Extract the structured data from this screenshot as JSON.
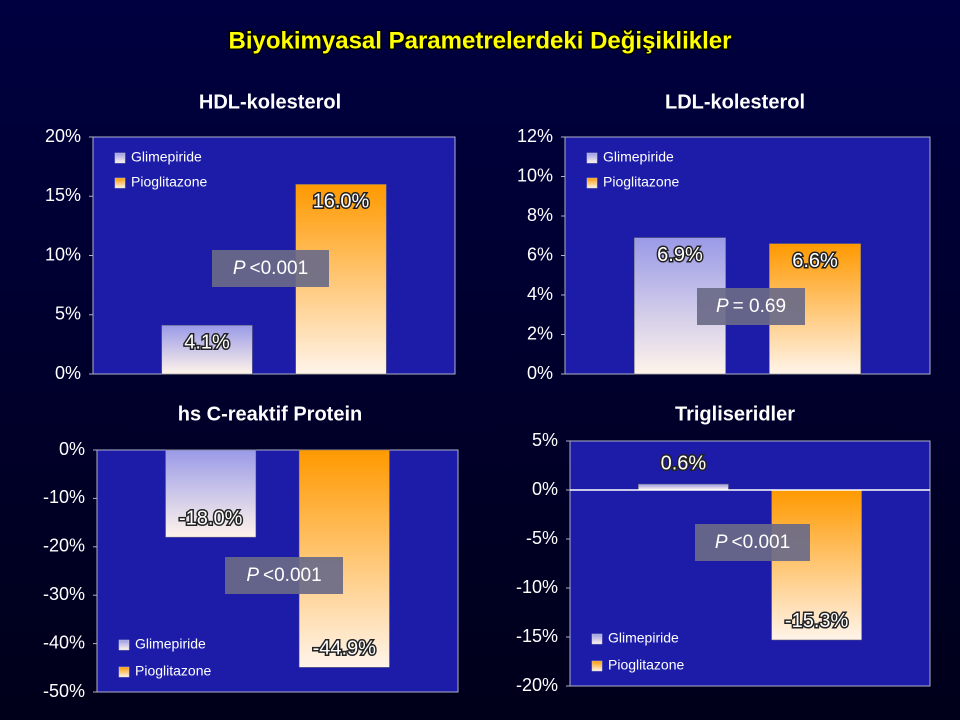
{
  "title": "Biyokimyasal Parametrelerdeki Değişiklikler",
  "chart_data": [
    {
      "type": "bar",
      "title": "HDL-kolesterol",
      "categories": [
        null
      ],
      "series": [
        {
          "name": "Glimepiride",
          "color": "#9a9ae8",
          "values": [
            4.1
          ],
          "value_labels": [
            "4.1%"
          ]
        },
        {
          "name": "Pioglitazone",
          "color": "#ff9900",
          "values": [
            16.0
          ],
          "value_labels": [
            "16.0%"
          ]
        }
      ],
      "ylim": [
        0,
        20
      ],
      "yticks": [
        {
          "value": 0,
          "label": "0%"
        },
        {
          "value": 5,
          "label": "5%"
        },
        {
          "value": 10,
          "label": "10%"
        },
        {
          "value": 15,
          "label": "15%"
        },
        {
          "value": 20,
          "label": "20%"
        }
      ],
      "legend": "upper left",
      "annotation": {
        "symbol": "P",
        "text": "<0.001"
      }
    },
    {
      "type": "bar",
      "title": "LDL-kolesterol",
      "categories": [
        null
      ],
      "series": [
        {
          "name": "Glimepiride",
          "color": "#9a9ae8",
          "values": [
            6.9
          ],
          "value_labels": [
            "6.9%"
          ]
        },
        {
          "name": "Pioglitazone",
          "color": "#ff9900",
          "values": [
            6.6
          ],
          "value_labels": [
            "6.6%"
          ]
        }
      ],
      "ylim": [
        0,
        12
      ],
      "yticks": [
        {
          "value": 0,
          "label": "0%"
        },
        {
          "value": 2,
          "label": "2%"
        },
        {
          "value": 4,
          "label": "4%"
        },
        {
          "value": 6,
          "label": "6%"
        },
        {
          "value": 8,
          "label": "8%"
        },
        {
          "value": 10,
          "label": "10%"
        },
        {
          "value": 12,
          "label": "12%"
        }
      ],
      "legend": "upper left",
      "annotation": {
        "symbol": "P",
        "text": "= 0.69"
      }
    },
    {
      "type": "bar",
      "title": "hs C-reaktif Protein",
      "categories": [
        null
      ],
      "series": [
        {
          "name": "Glimepiride",
          "color": "#9a9ae8",
          "values": [
            -18.0
          ],
          "value_labels": [
            "-18.0%"
          ]
        },
        {
          "name": "Pioglitazone",
          "color": "#ff9900",
          "values": [
            -44.9
          ],
          "value_labels": [
            "-44.9%"
          ]
        }
      ],
      "ylim": [
        -50,
        0
      ],
      "yticks": [
        {
          "value": -50,
          "label": "-50%"
        },
        {
          "value": -40,
          "label": "-40%"
        },
        {
          "value": -30,
          "label": "-30%"
        },
        {
          "value": -20,
          "label": "-20%"
        },
        {
          "value": -10,
          "label": "-10%"
        },
        {
          "value": 0,
          "label": "0%"
        }
      ],
      "legend": "lower left",
      "annotation": {
        "symbol": "P",
        "text": "<0.001"
      }
    },
    {
      "type": "bar",
      "title": "Trigliseridler",
      "categories": [
        null
      ],
      "series": [
        {
          "name": "Glimepiride",
          "color": "#9a9ae8",
          "values": [
            0.6
          ],
          "value_labels": [
            "0.6%"
          ]
        },
        {
          "name": "Pioglitazone",
          "color": "#ff9900",
          "values": [
            -15.3
          ],
          "value_labels": [
            "-15.3%"
          ]
        }
      ],
      "ylim": [
        -20,
        5
      ],
      "yticks": [
        {
          "value": -20,
          "label": "-20%"
        },
        {
          "value": -15,
          "label": "-15%"
        },
        {
          "value": -10,
          "label": "-10%"
        },
        {
          "value": -5,
          "label": "-5%"
        },
        {
          "value": 0,
          "label": "0%"
        },
        {
          "value": 5,
          "label": "5%"
        }
      ],
      "legend": "lower left",
      "annotation": {
        "symbol": "P",
        "text": "<0.001"
      }
    }
  ]
}
